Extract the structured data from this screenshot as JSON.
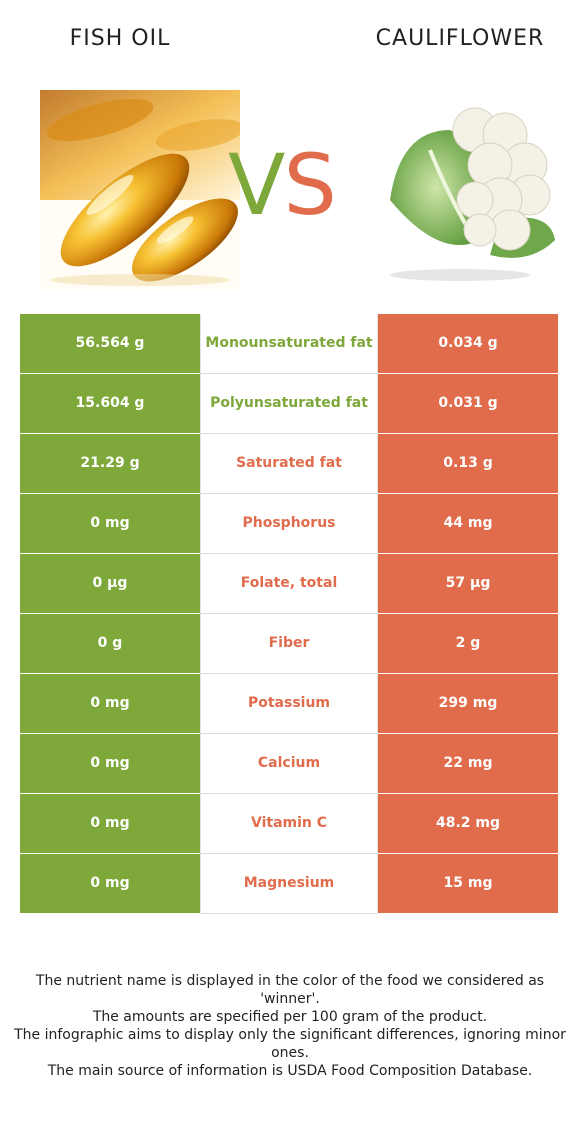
{
  "header": {
    "left_title": "FISH OIL",
    "right_title": "CAULIFLOWER",
    "vs_v": "V",
    "vs_s": "S"
  },
  "colors": {
    "winner_left": "#7ea83a",
    "winner_right": "#e16c4c"
  },
  "rows": [
    {
      "left": "56.564 g",
      "nutrient": "Monounsaturated fat",
      "right": "0.034 g",
      "winner": "left"
    },
    {
      "left": "15.604 g",
      "nutrient": "Polyunsaturated fat",
      "right": "0.031 g",
      "winner": "left"
    },
    {
      "left": "21.29 g",
      "nutrient": "Saturated fat",
      "right": "0.13 g",
      "winner": "right"
    },
    {
      "left": "0 mg",
      "nutrient": "Phosphorus",
      "right": "44 mg",
      "winner": "right"
    },
    {
      "left": "0 µg",
      "nutrient": "Folate, total",
      "right": "57 µg",
      "winner": "right"
    },
    {
      "left": "0 g",
      "nutrient": "Fiber",
      "right": "2 g",
      "winner": "right"
    },
    {
      "left": "0 mg",
      "nutrient": "Potassium",
      "right": "299 mg",
      "winner": "right"
    },
    {
      "left": "0 mg",
      "nutrient": "Calcium",
      "right": "22 mg",
      "winner": "right"
    },
    {
      "left": "0 mg",
      "nutrient": "Vitamin C",
      "right": "48.2 mg",
      "winner": "right"
    },
    {
      "left": "0 mg",
      "nutrient": "Magnesium",
      "right": "15 mg",
      "winner": "right"
    }
  ],
  "footer": {
    "line1": "The nutrient name is displayed in the color of the food we considered as 'winner'.",
    "line2": "The amounts are specified per 100 gram of the product.",
    "line3": "The infographic aims to display only the significant differences, ignoring minor ones.",
    "line4": "The main source of information is USDA Food Composition Database."
  }
}
